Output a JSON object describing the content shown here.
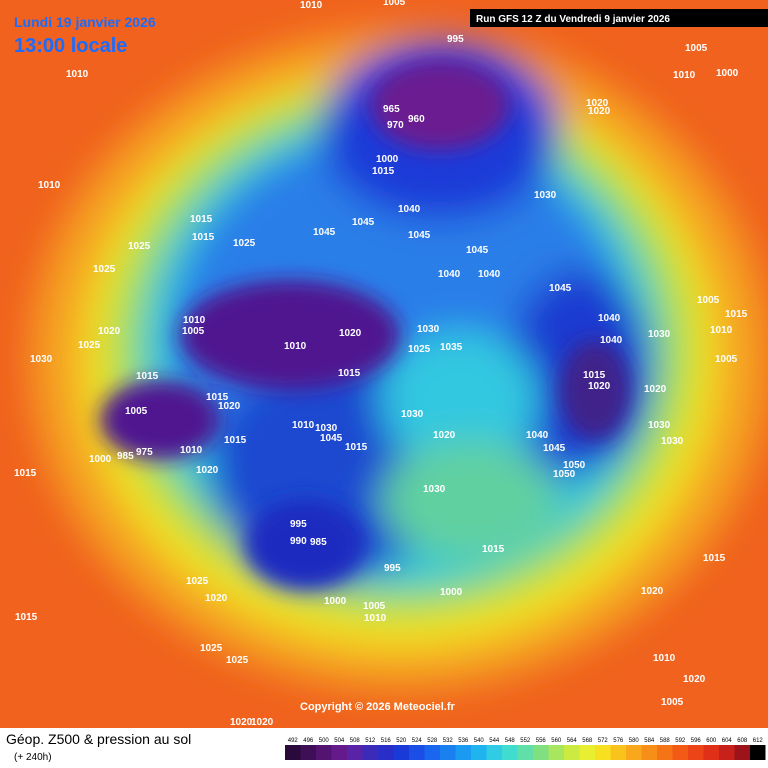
{
  "header": {
    "date": "Lundi 19 janvier 2026",
    "time": "13:00 locale",
    "run": "Run GFS 12 Z du Vendredi 9 janvier 2026"
  },
  "footer": {
    "copyright": "Copyright © 2026 Meteociel.fr",
    "product": "Géop. Z500 & pression au sol",
    "lead": "(+ 240h)"
  },
  "colorbar": {
    "ticks": [
      492,
      496,
      500,
      504,
      508,
      512,
      516,
      520,
      524,
      528,
      532,
      536,
      540,
      544,
      548,
      552,
      556,
      560,
      564,
      568,
      572,
      576,
      580,
      584,
      588,
      592,
      596,
      600,
      604,
      608,
      612
    ]
  },
  "pressure_labels": [
    1010,
    1005,
    995,
    1005,
    1010,
    1000,
    1010,
    1010,
    965,
    960,
    970,
    1020,
    1020,
    1000,
    1015,
    1040,
    1030,
    1015,
    1015,
    1025,
    1025,
    1045,
    1045,
    1045,
    1045,
    1040,
    1040,
    1045,
    1025,
    1005,
    1015,
    1040,
    1030,
    1010,
    1020,
    1010,
    1005,
    1010,
    1020,
    1030,
    1025,
    1035,
    1040,
    1005,
    1030,
    1025,
    1015,
    1015,
    1015,
    1020,
    1020,
    1015,
    1020,
    1005,
    1030,
    1030,
    1010,
    1030,
    1020,
    1040,
    1045,
    1015,
    1015,
    1030,
    1045,
    1010,
    975,
    985,
    1000,
    1020,
    1050,
    1050,
    1015,
    1030,
    995,
    990,
    985,
    1015,
    995,
    1015,
    1025,
    1020,
    1000,
    1020,
    1000,
    1005,
    1010,
    1015,
    1025,
    1010,
    1025,
    1020,
    1005,
    1020,
    1020
  ]
}
